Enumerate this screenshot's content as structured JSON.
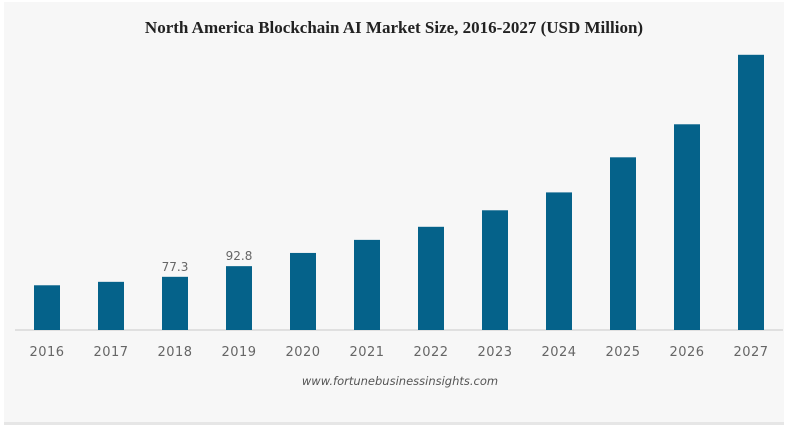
{
  "chart_data": {
    "type": "bar",
    "title": "North America Blockchain AI Market Size, 2016-2027 (USD Million)",
    "categories": [
      "2016",
      "2017",
      "2018",
      "2019",
      "2020",
      "2021",
      "2022",
      "2023",
      "2024",
      "2025",
      "2026",
      "2027"
    ],
    "values": [
      65,
      70,
      77.3,
      92.8,
      112,
      131,
      150,
      174,
      200,
      251,
      299,
      400
    ],
    "data_labels": {
      "2018": "77.3",
      "2019": "92.8"
    },
    "xlabel": "",
    "ylabel": "",
    "ylim": [
      0,
      420
    ],
    "bar_color": "#05628a",
    "grid": false
  },
  "source": "www.fortunebusinessinsights.com"
}
